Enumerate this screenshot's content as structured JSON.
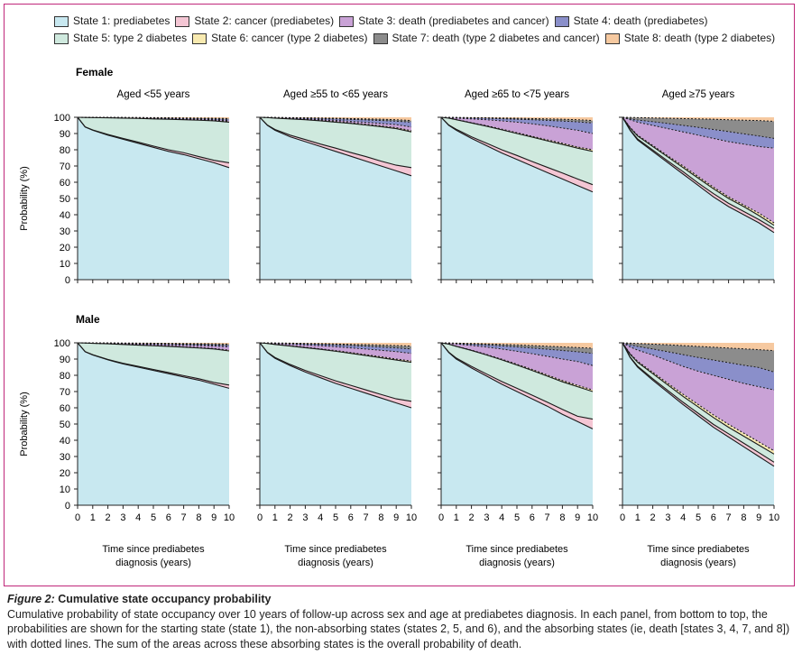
{
  "legend": {
    "rows": [
      [
        {
          "label": "State 1: prediabetes",
          "color": "#c8e8f0",
          "icon": "swatch-state-1"
        },
        {
          "label": "State 2: cancer (prediabetes)",
          "color": "#f4c6d4",
          "icon": "swatch-state-2"
        },
        {
          "label": "State 3: death (prediabetes and cancer)",
          "color": "#c9a2d6",
          "icon": "swatch-state-3"
        },
        {
          "label": "State 4: death (prediabetes)",
          "color": "#8a8fca",
          "icon": "swatch-state-4"
        }
      ],
      [
        {
          "label": "State 5: type 2 diabetes",
          "color": "#cfe9de",
          "icon": "swatch-state-5"
        },
        {
          "label": "State 6: cancer (type 2 diabetes)",
          "color": "#f8eab0",
          "icon": "swatch-state-6"
        },
        {
          "label": "State 7: death (type 2 diabetes and cancer)",
          "color": "#8c8c8c",
          "icon": "swatch-state-7"
        },
        {
          "label": "State 8: death (type 2 diabetes)",
          "color": "#f6c9a0",
          "icon": "swatch-state-8"
        }
      ]
    ]
  },
  "rows": [
    {
      "label": "Female"
    },
    {
      "label": "Male"
    }
  ],
  "columns": [
    {
      "label": "Aged <55 years"
    },
    {
      "label": "Aged ≥55 to <65 years"
    },
    {
      "label": "Aged ≥65 to <75 years"
    },
    {
      "label": "Aged ≥75 years"
    }
  ],
  "axis": {
    "ylabel": "Probability (%)",
    "xlabel_line1": "Time since prediabetes",
    "xlabel_line2": "diagnosis (years)",
    "yticks": [
      0,
      10,
      20,
      30,
      40,
      50,
      60,
      70,
      80,
      90,
      100
    ],
    "xticks": [
      0,
      1,
      2,
      3,
      4,
      5,
      6,
      7,
      8,
      9,
      10
    ]
  },
  "caption": {
    "title_italic": "Figure 2:",
    "title_rest": " Cumulative state occupancy probability",
    "body": "Cumulative probability of state occupancy over 10 years of follow-up across sex and age at prediabetes diagnosis. In each panel, from bottom to top, the probabilities are shown for the starting state (state 1), the non-absorbing states (states 2, 5, and 6), and the absorbing states (ie, death [states 3, 4, 7, and 8]) with dotted lines. The sum of the areas across these absorbing states is the overall probability of death."
  },
  "colors": {
    "frame": "#c0277a",
    "s1": "#c8e8f0",
    "s2": "#f4c6d4",
    "s5": "#cfe9de",
    "s6": "#f8eab0",
    "s3": "#c9a2d6",
    "s4": "#8a8fca",
    "s7": "#8c8c8c",
    "s8": "#f6c9a0"
  },
  "chart_data": {
    "type": "area",
    "stacking": "cumulative, bottom to top: state 1, 2, 5, 6, 3, 4, 7, 8",
    "x": [
      0,
      0.5,
      1,
      2,
      3,
      4,
      5,
      6,
      7,
      8,
      9,
      10
    ],
    "xlabel": "Time since prediabetes diagnosis (years)",
    "ylabel": "Probability (%)",
    "xlim": [
      0,
      10
    ],
    "ylim": [
      0,
      100
    ],
    "panels": [
      {
        "sex": "Female",
        "age": "Aged <55 years",
        "boundaries": {
          "s1": [
            100,
            94,
            92,
            89,
            86.5,
            84,
            81.5,
            79,
            77,
            74.5,
            72,
            69
          ],
          "s2": [
            100,
            94.1,
            92.2,
            89.4,
            87,
            84.7,
            82.3,
            80,
            78.2,
            75.8,
            73.5,
            72
          ],
          "s5": [
            100,
            99.9,
            99.8,
            99.7,
            99.5,
            99.3,
            99,
            98.8,
            98.5,
            98.2,
            97.8,
            97
          ],
          "s6": [
            100,
            99.9,
            99.85,
            99.75,
            99.6,
            99.4,
            99.2,
            99,
            98.7,
            98.4,
            98.1,
            97.4
          ],
          "s3": [
            100,
            99.95,
            99.9,
            99.8,
            99.7,
            99.55,
            99.4,
            99.2,
            99,
            98.8,
            98.5,
            98
          ],
          "s4": [
            100,
            99.97,
            99.95,
            99.9,
            99.85,
            99.75,
            99.65,
            99.5,
            99.35,
            99.2,
            99,
            98.7
          ],
          "s7": [
            100,
            99.98,
            99.97,
            99.95,
            99.9,
            99.85,
            99.8,
            99.7,
            99.6,
            99.5,
            99.4,
            99.2
          ],
          "s8": [
            100,
            100,
            100,
            100,
            100,
            100,
            100,
            100,
            100,
            100,
            100,
            100
          ]
        }
      },
      {
        "sex": "Female",
        "age": "Aged ≥55 to <65 years",
        "boundaries": {
          "s1": [
            100,
            95,
            92,
            88,
            85,
            82,
            79,
            76,
            73,
            70,
            67,
            64
          ],
          "s2": [
            100,
            95.2,
            92.5,
            89,
            86.3,
            83.5,
            81,
            78.3,
            75.8,
            73,
            70.5,
            69
          ],
          "s5": [
            100,
            99.8,
            99.5,
            99,
            98.5,
            97.8,
            97,
            96.2,
            95.2,
            94.2,
            93,
            91
          ],
          "s6": [
            100,
            99.85,
            99.6,
            99.15,
            98.7,
            98.1,
            97.4,
            96.6,
            95.7,
            94.7,
            93.6,
            91.7
          ],
          "s3": [
            100,
            99.9,
            99.7,
            99.4,
            99,
            98.6,
            98.1,
            97.5,
            96.9,
            96.2,
            95.5,
            94
          ],
          "s4": [
            100,
            99.95,
            99.85,
            99.7,
            99.5,
            99.25,
            99,
            98.7,
            98.4,
            98,
            97.6,
            97
          ],
          "s7": [
            100,
            99.97,
            99.9,
            99.8,
            99.7,
            99.55,
            99.4,
            99.2,
            99,
            98.8,
            98.5,
            98
          ],
          "s8": [
            100,
            100,
            100,
            100,
            100,
            100,
            100,
            100,
            100,
            100,
            100,
            100
          ]
        }
      },
      {
        "sex": "Female",
        "age": "Aged ≥65 to <75 years",
        "boundaries": {
          "s1": [
            100,
            95,
            92,
            87,
            82.5,
            78,
            74,
            70,
            66,
            62,
            58,
            54
          ],
          "s2": [
            100,
            95.3,
            92.6,
            88,
            84,
            80,
            76.5,
            72.8,
            69.2,
            65.7,
            62,
            58.5
          ],
          "s5": [
            100,
            99.5,
            98.5,
            96.5,
            94.5,
            92.3,
            90,
            87.8,
            85.5,
            83.3,
            81,
            79
          ],
          "s6": [
            100,
            99.55,
            98.6,
            96.7,
            94.8,
            92.7,
            90.5,
            88.3,
            86.1,
            84,
            81.7,
            80
          ],
          "s3": [
            100,
            99.8,
            99.5,
            99,
            98.5,
            97.8,
            97,
            96,
            94.8,
            93.4,
            92,
            90
          ],
          "s4": [
            100,
            99.9,
            99.8,
            99.6,
            99.4,
            99.1,
            98.8,
            98.5,
            98.1,
            97.7,
            97.2,
            96.5
          ],
          "s7": [
            100,
            99.95,
            99.9,
            99.8,
            99.7,
            99.55,
            99.4,
            99.2,
            99,
            98.8,
            98.5,
            98
          ],
          "s8": [
            100,
            100,
            100,
            100,
            100,
            100,
            100,
            100,
            100,
            100,
            100,
            100
          ]
        }
      },
      {
        "sex": "Female",
        "age": "Aged ≥75 years",
        "boundaries": {
          "s1": [
            100,
            92,
            86,
            79,
            72,
            65,
            58,
            51,
            45,
            40,
            35,
            29
          ],
          "s2": [
            100,
            92.3,
            86.6,
            79.8,
            73,
            66.5,
            59.5,
            53,
            47,
            42,
            37,
            31.5
          ],
          "s5": [
            100,
            93.5,
            88.5,
            82,
            75.5,
            69,
            62.5,
            56,
            50,
            45,
            39.5,
            33.5
          ],
          "s6": [
            100,
            93.8,
            89,
            82.6,
            76.2,
            70,
            63.5,
            57,
            51,
            46,
            41,
            35
          ],
          "s3": [
            100,
            98.5,
            97,
            95,
            93,
            91,
            89,
            87,
            85,
            83.5,
            82,
            81
          ],
          "s4": [
            100,
            99,
            98.3,
            97.3,
            96.2,
            95,
            93.8,
            92.5,
            91.2,
            89.8,
            88.5,
            87
          ],
          "s7": [
            100,
            99.9,
            99.8,
            99.6,
            99.4,
            99.2,
            99,
            98.8,
            98.5,
            98.2,
            98,
            97.5
          ],
          "s8": [
            100,
            100,
            100,
            100,
            100,
            100,
            100,
            100,
            100,
            100,
            100,
            100
          ]
        }
      },
      {
        "sex": "Male",
        "age": "Aged <55 years",
        "boundaries": {
          "s1": [
            100,
            94.5,
            92.5,
            89.5,
            87,
            85,
            83,
            81,
            79,
            77,
            74.5,
            72
          ],
          "s2": [
            100,
            94.6,
            92.7,
            89.8,
            87.4,
            85.5,
            83.6,
            81.7,
            79.8,
            77.9,
            75.6,
            74
          ],
          "s5": [
            100,
            99.9,
            99.7,
            99.4,
            99,
            98.6,
            98.2,
            97.8,
            97.3,
            96.8,
            96.2,
            95
          ],
          "s6": [
            100,
            99.9,
            99.75,
            99.5,
            99.15,
            98.8,
            98.4,
            98,
            97.55,
            97.1,
            96.5,
            95.5
          ],
          "s3": [
            100,
            99.95,
            99.85,
            99.7,
            99.5,
            99.3,
            99.1,
            98.85,
            98.6,
            98.3,
            98,
            97.5
          ],
          "s4": [
            100,
            99.97,
            99.93,
            99.85,
            99.75,
            99.6,
            99.45,
            99.3,
            99.1,
            98.9,
            98.7,
            98.3
          ],
          "s7": [
            100,
            99.98,
            99.96,
            99.93,
            99.88,
            99.82,
            99.75,
            99.67,
            99.58,
            99.48,
            99.37,
            99.2
          ],
          "s8": [
            100,
            100,
            100,
            100,
            100,
            100,
            100,
            100,
            100,
            100,
            100,
            100
          ]
        }
      },
      {
        "sex": "Male",
        "age": "Aged ≥55 to <65 years",
        "boundaries": {
          "s1": [
            100,
            94,
            90.5,
            86,
            82,
            78.5,
            75,
            72,
            69,
            66,
            63,
            60
          ],
          "s2": [
            100,
            94.2,
            91,
            86.7,
            83,
            79.8,
            76.6,
            73.8,
            71,
            68.2,
            65.5,
            64
          ],
          "s5": [
            100,
            99.6,
            99,
            98,
            97,
            96,
            94.8,
            93.5,
            92.2,
            90.8,
            89.4,
            88
          ],
          "s6": [
            100,
            99.65,
            99.1,
            98.2,
            97.3,
            96.3,
            95.2,
            94,
            92.7,
            91.4,
            90,
            88.8
          ],
          "s3": [
            100,
            99.85,
            99.6,
            99.2,
            98.7,
            98.2,
            97.6,
            96.9,
            96.2,
            95.4,
            94.6,
            93.5
          ],
          "s4": [
            100,
            99.92,
            99.8,
            99.6,
            99.35,
            99.05,
            98.7,
            98.3,
            97.9,
            97.4,
            96.9,
            96.2
          ],
          "s7": [
            100,
            99.96,
            99.9,
            99.8,
            99.65,
            99.5,
            99.3,
            99.1,
            98.9,
            98.6,
            98.3,
            98
          ],
          "s8": [
            100,
            100,
            100,
            100,
            100,
            100,
            100,
            100,
            100,
            100,
            100,
            100
          ]
        }
      },
      {
        "sex": "Male",
        "age": "Aged ≥65 to <75 years",
        "boundaries": {
          "s1": [
            100,
            94,
            90,
            84.5,
            79.5,
            74.5,
            70,
            65.5,
            61,
            56,
            51.5,
            47
          ],
          "s2": [
            100,
            94.3,
            90.6,
            85.5,
            80.8,
            76.2,
            72,
            67.8,
            63.5,
            59,
            54.8,
            53
          ],
          "s5": [
            100,
            99.2,
            97.8,
            95.3,
            92.5,
            89.5,
            86.3,
            83,
            79.5,
            76,
            73,
            70
          ],
          "s6": [
            100,
            99.25,
            97.9,
            95.5,
            92.8,
            89.9,
            86.8,
            83.6,
            80.2,
            76.8,
            73.8,
            71
          ],
          "s3": [
            100,
            99.7,
            99.3,
            98.4,
            97.4,
            96.2,
            94.8,
            93.3,
            91.7,
            90,
            88.5,
            86
          ],
          "s4": [
            100,
            99.85,
            99.6,
            99.2,
            98.7,
            98.1,
            97.5,
            96.8,
            96.1,
            95.3,
            94.5,
            93.5
          ],
          "s7": [
            100,
            99.92,
            99.8,
            99.6,
            99.35,
            99.05,
            98.7,
            98.3,
            97.9,
            97.5,
            97.1,
            96.7
          ],
          "s8": [
            100,
            100,
            100,
            100,
            100,
            100,
            100,
            100,
            100,
            100,
            100,
            100
          ]
        }
      },
      {
        "sex": "Male",
        "age": "Aged ≥75 years",
        "boundaries": {
          "s1": [
            100,
            91,
            85,
            77,
            69.5,
            62,
            55,
            48,
            42,
            36,
            30,
            24
          ],
          "s2": [
            100,
            91.3,
            85.6,
            77.9,
            70.6,
            63.4,
            56.6,
            49.8,
            44,
            38.2,
            32.4,
            26.5
          ],
          "s5": [
            100,
            93,
            88,
            81,
            74,
            67,
            60.5,
            54,
            48,
            42.5,
            37,
            31.5
          ],
          "s6": [
            100,
            93.4,
            88.6,
            81.8,
            75,
            68.3,
            62,
            55.6,
            49.8,
            44.4,
            39,
            33.5
          ],
          "s3": [
            100,
            97.5,
            95.5,
            92.5,
            89,
            85.5,
            82.5,
            80,
            77.5,
            75,
            73,
            71
          ],
          "s4": [
            100,
            98.8,
            97.8,
            96.2,
            94.5,
            92.7,
            91,
            89.4,
            87.8,
            86.2,
            84.8,
            82
          ],
          "s7": [
            100,
            99.8,
            99.6,
            99.2,
            98.8,
            98.3,
            97.8,
            97.3,
            96.8,
            96.3,
            95.8,
            95.2
          ],
          "s8": [
            100,
            100,
            100,
            100,
            100,
            100,
            100,
            100,
            100,
            100,
            100,
            100
          ]
        }
      }
    ]
  }
}
